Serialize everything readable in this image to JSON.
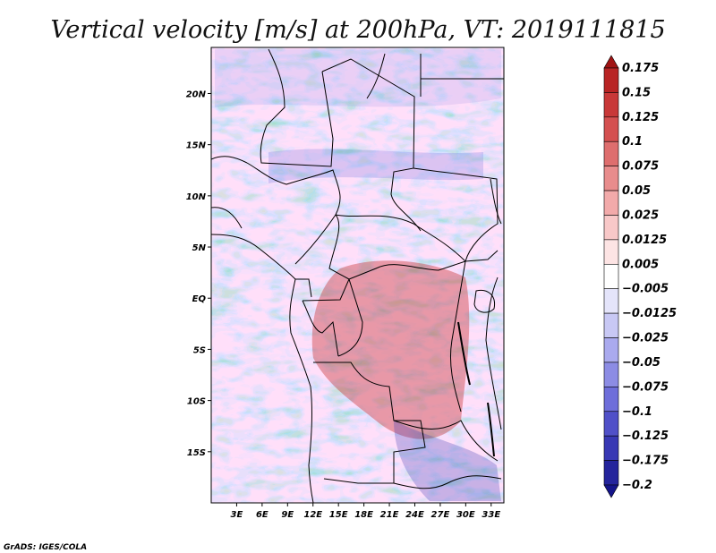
{
  "title": "Vertical velocity [m/s] at 200hPa, VT: 2019111815",
  "credit": "GrADS: IGES/COLA",
  "map": {
    "y_ticks": [
      "20N",
      "15N",
      "10N",
      "5N",
      "EQ",
      "5S",
      "10S",
      "15S"
    ],
    "x_ticks": [
      "3E",
      "6E",
      "9E",
      "12E",
      "15E",
      "18E",
      "21E",
      "24E",
      "27E",
      "30E",
      "33E"
    ],
    "lon_range": [
      0,
      34.5
    ],
    "lat_range": [
      -20,
      24.5
    ]
  },
  "colorbar": {
    "labels": [
      "0.175",
      "0.15",
      "0.125",
      "0.1",
      "0.075",
      "0.05",
      "0.025",
      "0.0125",
      "0.005",
      "−0.005",
      "−0.0125",
      "−0.025",
      "−0.05",
      "−0.075",
      "−0.1",
      "−0.125",
      "−0.175",
      "−0.2"
    ],
    "colors": [
      "#a01414",
      "#b82424",
      "#c83838",
      "#d45050",
      "#de6e6e",
      "#e88c8c",
      "#f2aaaa",
      "#f8c8c8",
      "#fde4e4",
      "#ffffff",
      "#e4e4fa",
      "#c8c8f4",
      "#aaaaee",
      "#8c8ce4",
      "#6e6eda",
      "#5050c8",
      "#3838b4",
      "#24249c",
      "#14148a"
    ]
  }
}
